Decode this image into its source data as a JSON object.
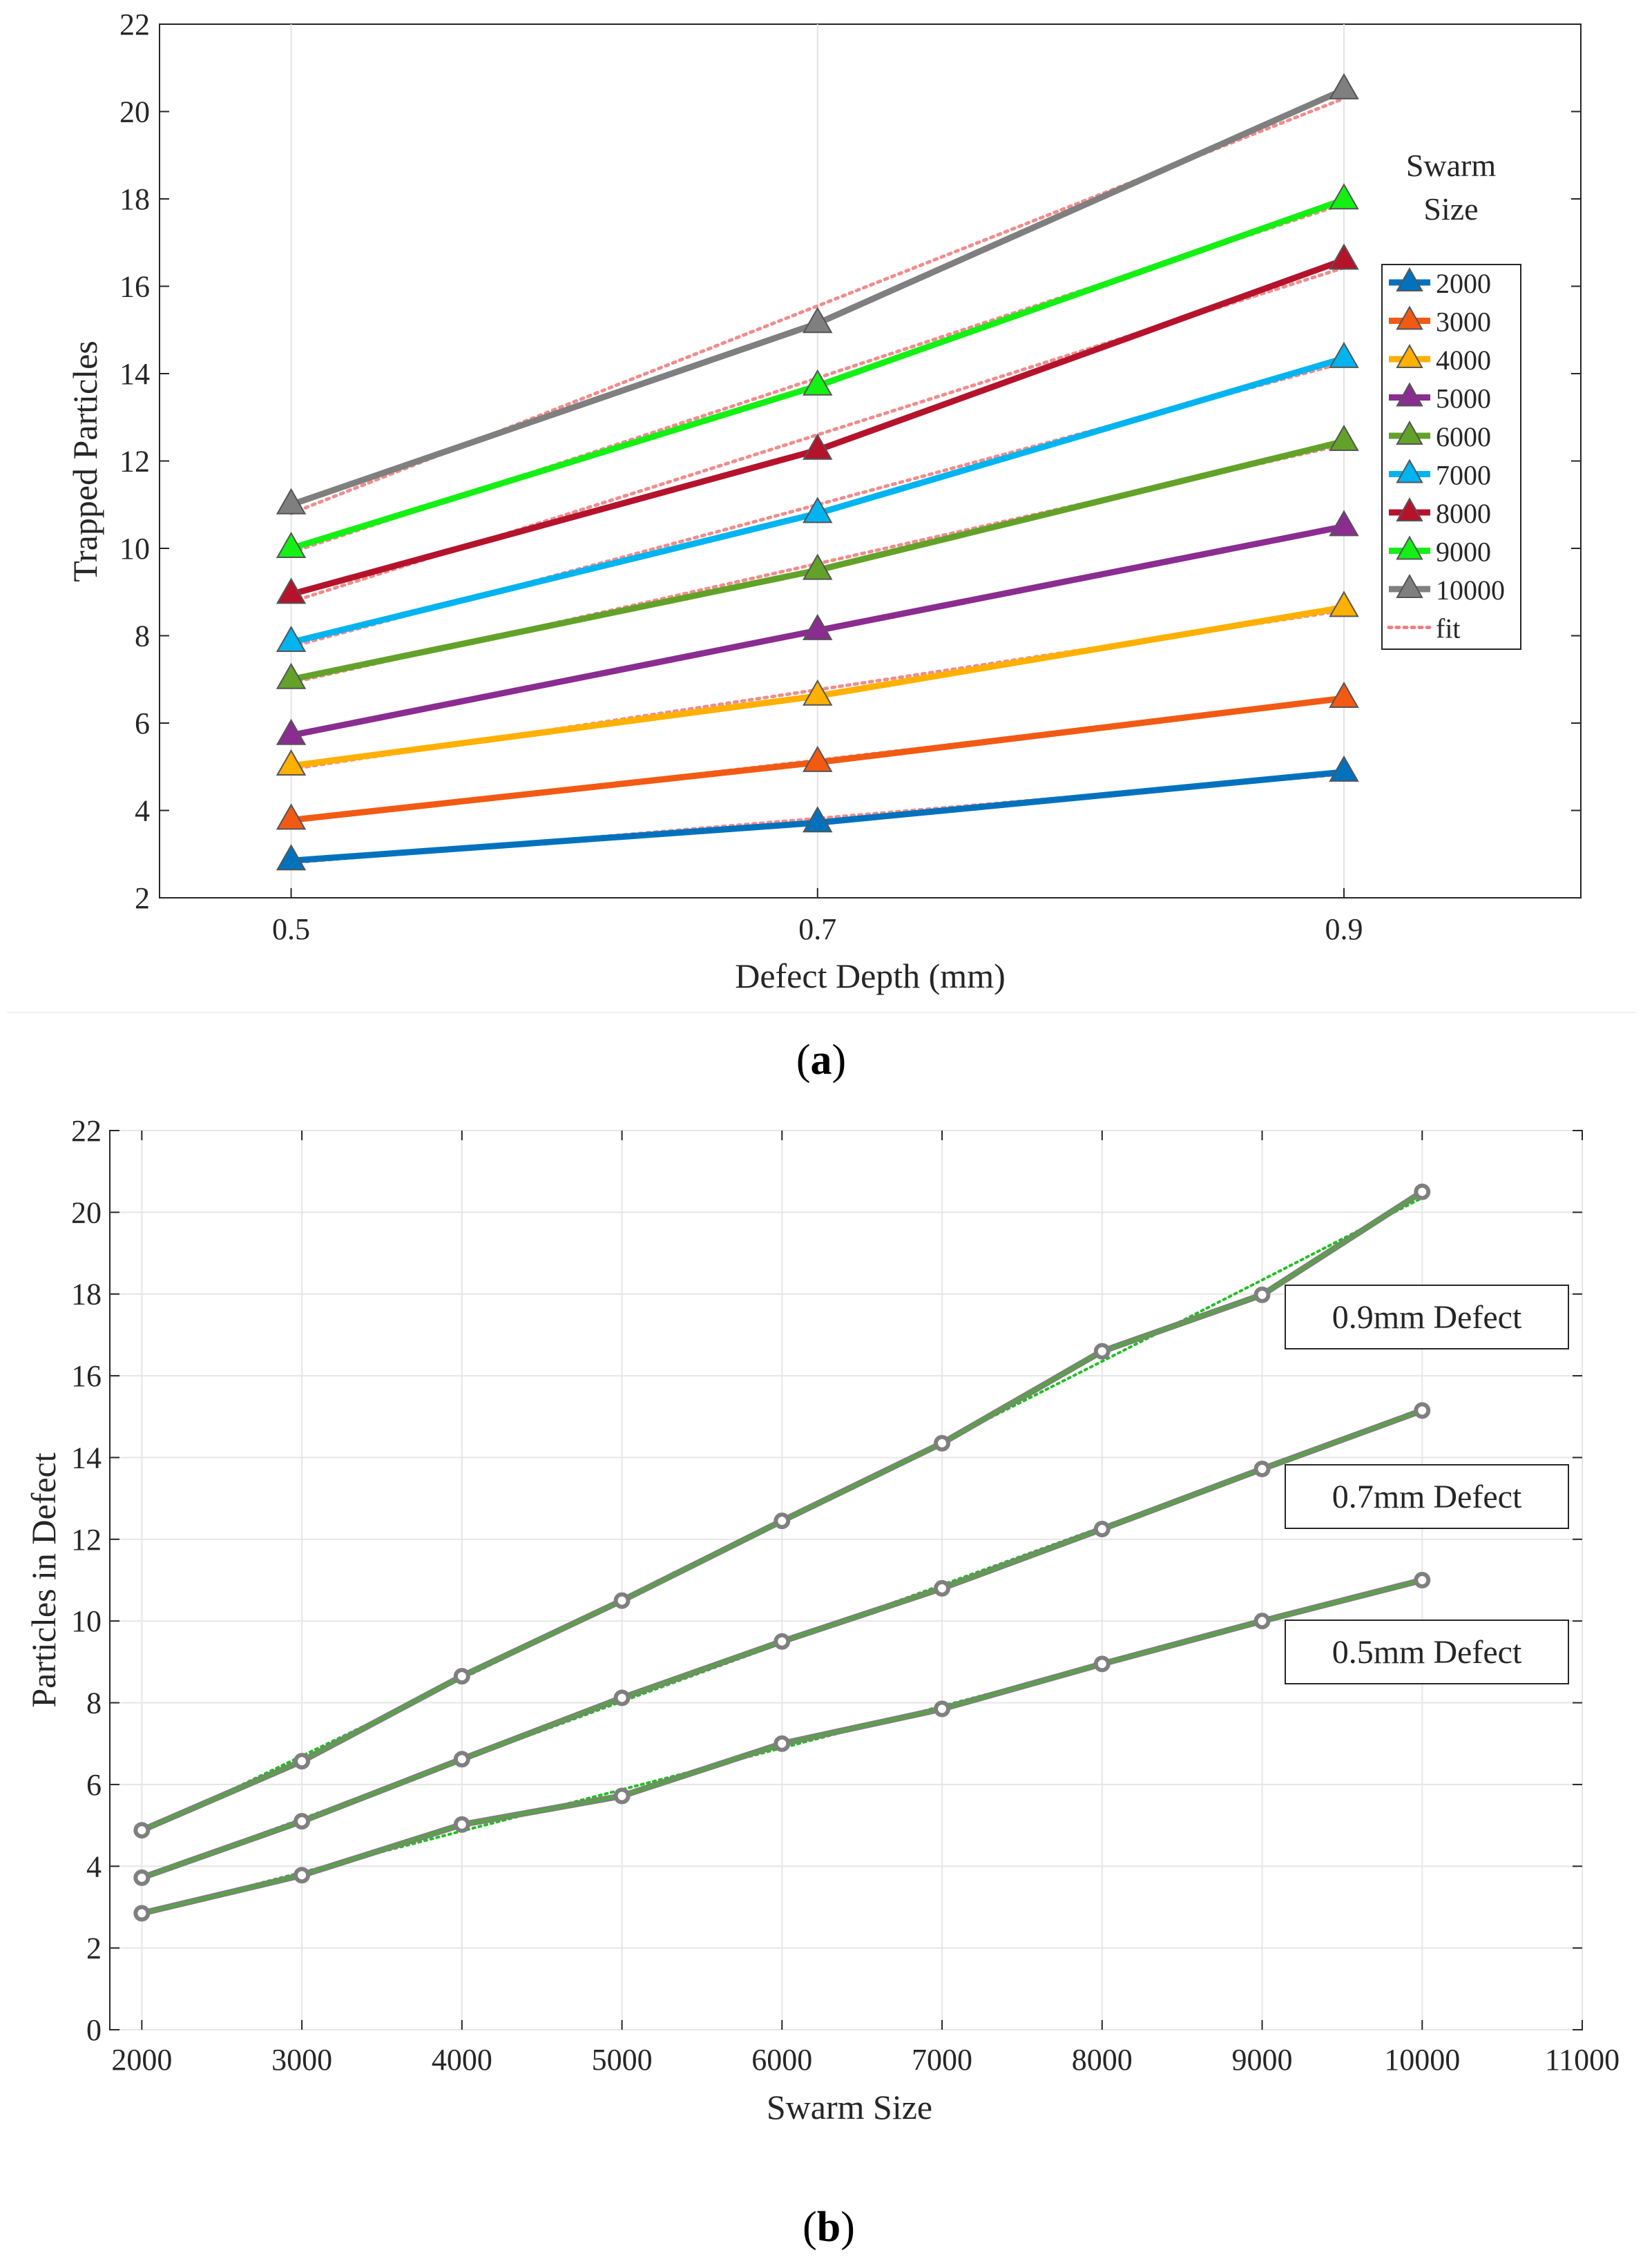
{
  "chart_data": [
    {
      "type": "line",
      "caption_label": "a",
      "xlabel": "Defect Depth (mm)",
      "ylabel": "Trapped Particles",
      "x": [
        0.5,
        0.7,
        0.9
      ],
      "xticks": [
        "0.5",
        "0.7",
        "0.9"
      ],
      "xlim": [
        0.45,
        0.99
      ],
      "ylim": [
        2,
        22
      ],
      "yticks": [
        2,
        4,
        6,
        8,
        10,
        12,
        14,
        16,
        18,
        20,
        22
      ],
      "grid": "x-only",
      "legend_title": [
        "Swarm",
        "Size"
      ],
      "legend_position": "right",
      "series": [
        {
          "name": "2000",
          "color": "#0072BD",
          "values": [
            2.85,
            3.72,
            4.88
          ]
        },
        {
          "name": "3000",
          "color": "#F25A14",
          "values": [
            3.78,
            5.1,
            6.57
          ]
        },
        {
          "name": "4000",
          "color": "#FFB000",
          "values": [
            5.02,
            6.62,
            8.65
          ]
        },
        {
          "name": "5000",
          "color": "#8B2C91",
          "values": [
            5.72,
            8.12,
            10.5
          ]
        },
        {
          "name": "6000",
          "color": "#63A229",
          "values": [
            7.0,
            9.5,
            12.45
          ]
        },
        {
          "name": "7000",
          "color": "#00B4F0",
          "values": [
            7.85,
            10.8,
            14.35
          ]
        },
        {
          "name": "8000",
          "color": "#B5132C",
          "values": [
            8.95,
            12.25,
            16.6
          ]
        },
        {
          "name": "9000",
          "color": "#14F014",
          "values": [
            10.0,
            13.72,
            17.98
          ]
        },
        {
          "name": "10000",
          "color": "#7F7F7F",
          "values": [
            11.0,
            15.15,
            20.5
          ]
        }
      ],
      "fit": {
        "name": "fit",
        "color": "#F08080"
      },
      "marker": "triangle"
    },
    {
      "type": "line",
      "caption_label": "b",
      "xlabel": "Swarm Size",
      "ylabel": "Particles in Defect",
      "x": [
        2000,
        3000,
        4000,
        5000,
        6000,
        7000,
        8000,
        9000,
        10000
      ],
      "xticks": [
        2000,
        3000,
        4000,
        5000,
        6000,
        7000,
        8000,
        9000,
        10000,
        11000
      ],
      "xlim": [
        1800,
        11000
      ],
      "ylim": [
        0,
        22
      ],
      "yticks": [
        0,
        2,
        4,
        6,
        8,
        10,
        12,
        14,
        16,
        18,
        20,
        22
      ],
      "grid": "both",
      "series": [
        {
          "name": "0.9mm Defect",
          "color": "#5BA04A",
          "values": [
            4.88,
            6.57,
            8.65,
            10.5,
            12.45,
            14.35,
            16.6,
            17.98,
            20.5
          ]
        },
        {
          "name": "0.7mm Defect",
          "color": "#5BA04A",
          "values": [
            3.72,
            5.1,
            6.62,
            8.12,
            9.5,
            10.8,
            12.25,
            13.72,
            15.15
          ]
        },
        {
          "name": "0.5mm Defect",
          "color": "#5BA04A",
          "values": [
            2.85,
            3.78,
            5.02,
            5.72,
            7.0,
            7.85,
            8.95,
            10.0,
            11.0
          ]
        }
      ],
      "fit_color": "#22C022",
      "marker_color": "#7F7F7F",
      "marker": "circle"
    }
  ]
}
